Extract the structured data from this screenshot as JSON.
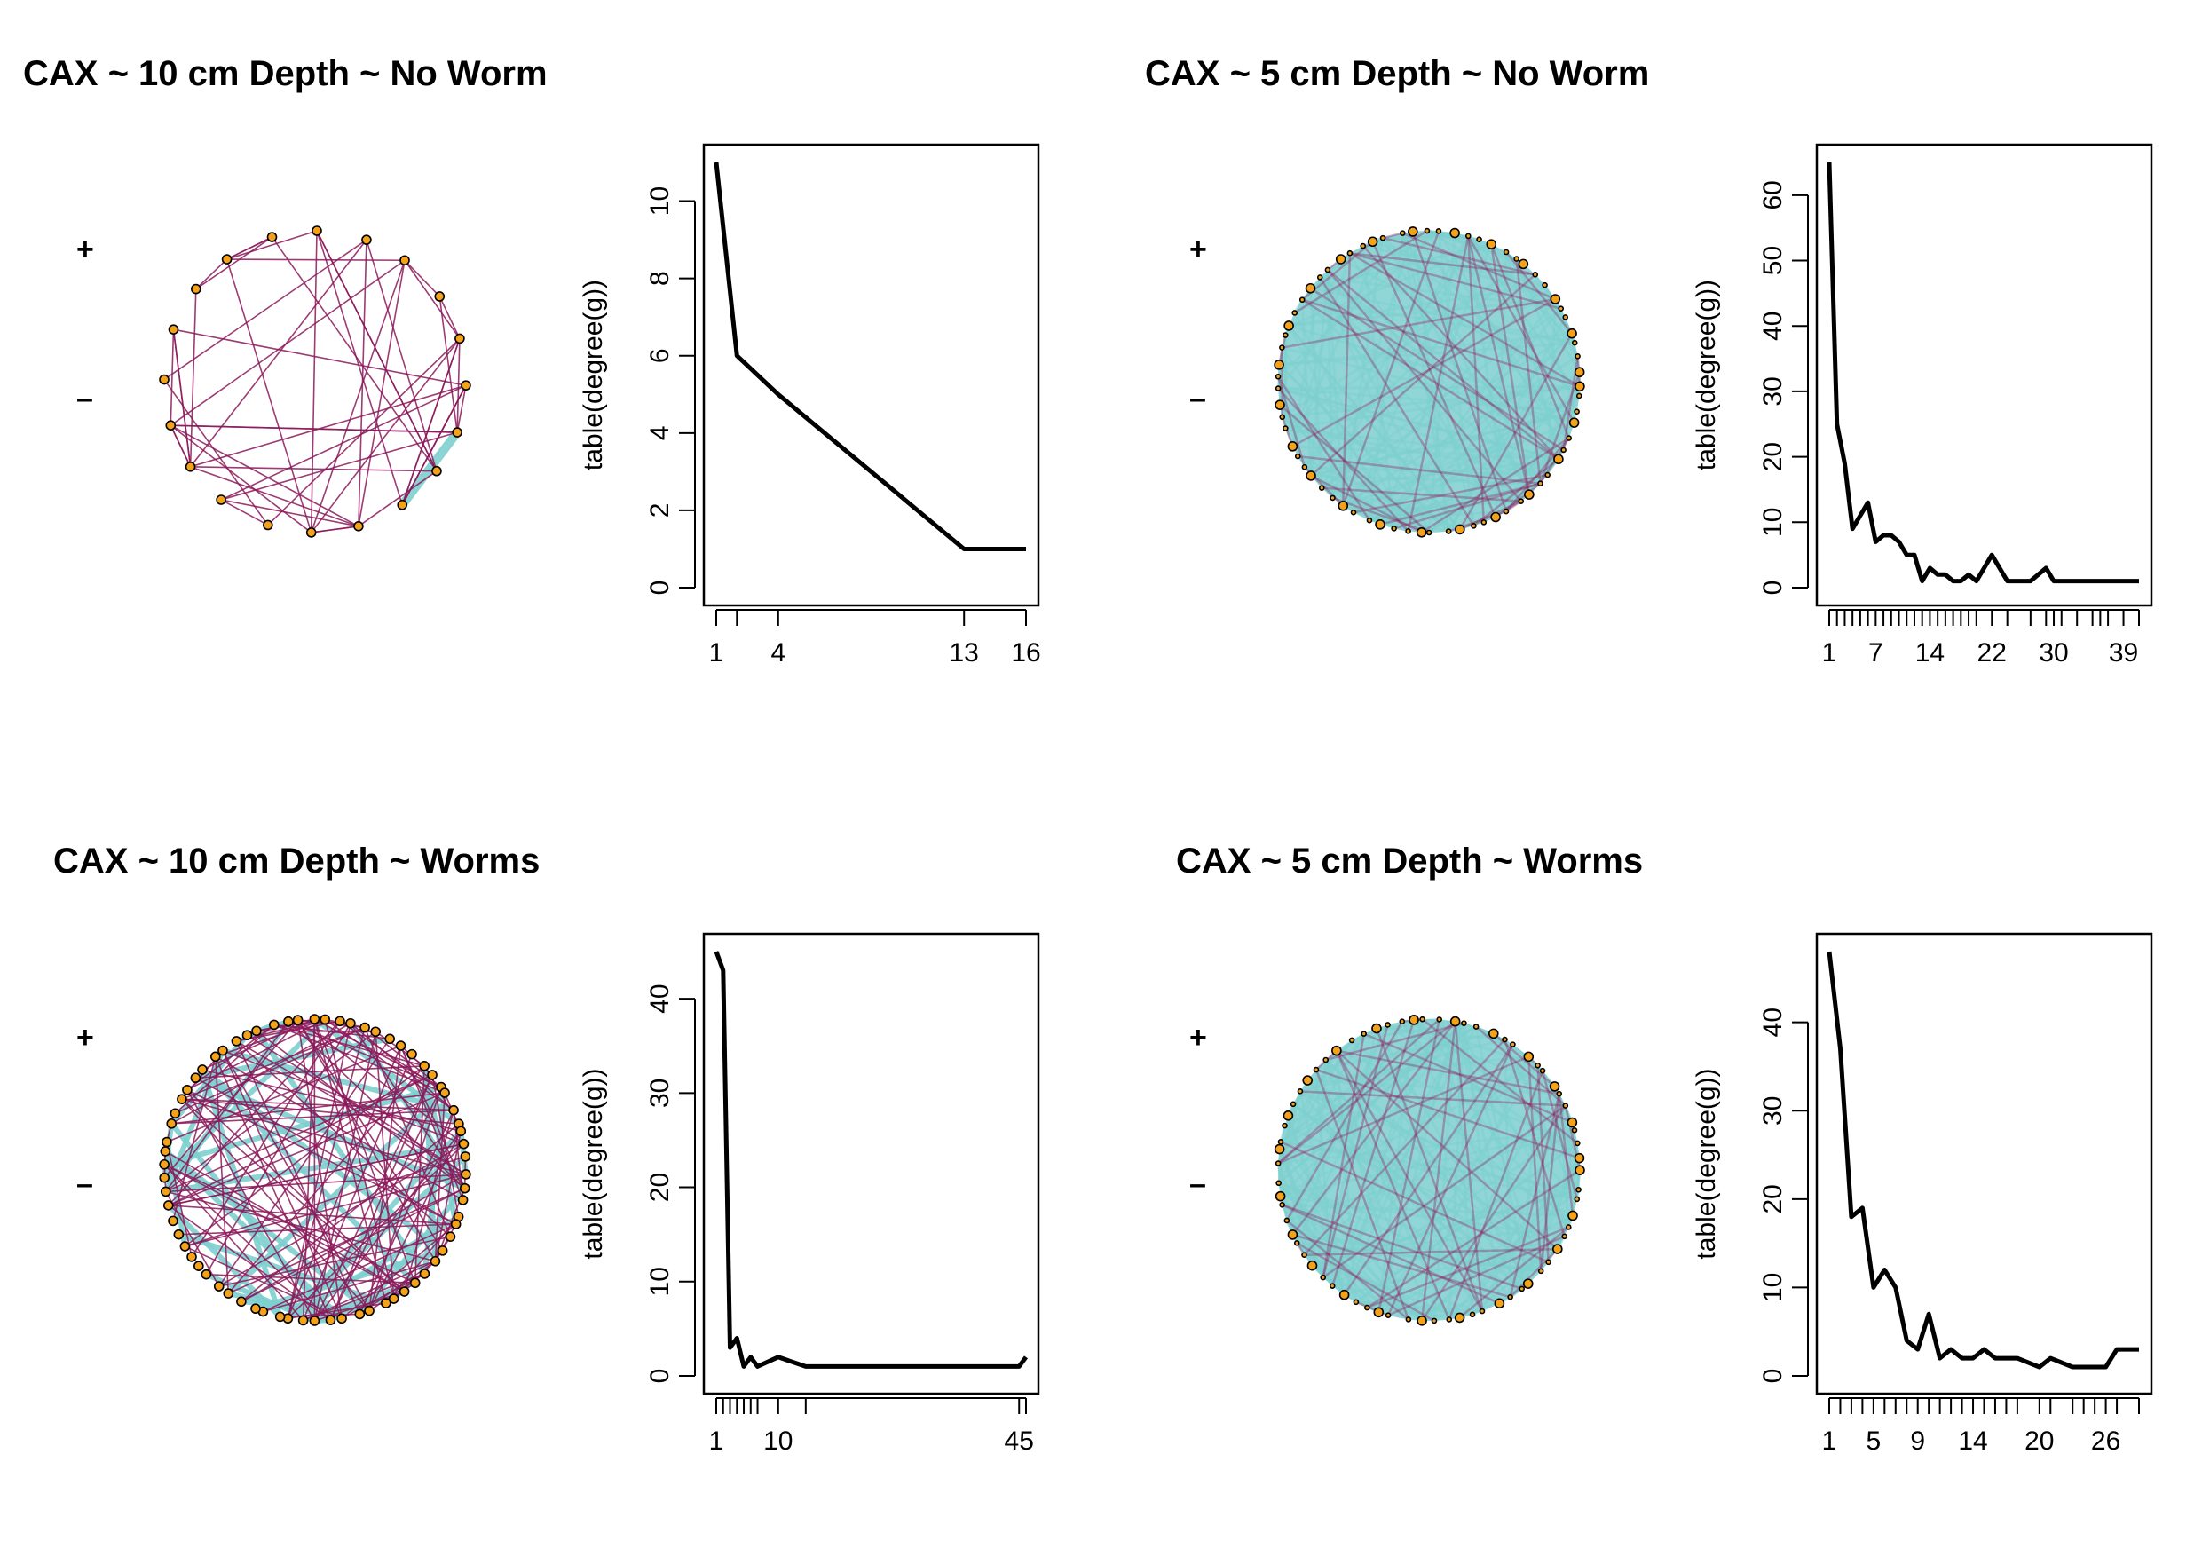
{
  "chart_data": [
    {
      "type": "network",
      "title": "CAX ~ 10 cm Depth ~ No Worm",
      "legend": [
        "+",
        "–"
      ],
      "colors": {
        "positive": "#7ecfcf",
        "negative": "#8b1a5a",
        "node": "#f5a21b"
      }
    },
    {
      "type": "line",
      "title": "",
      "xlabel": "",
      "ylabel": "table(degree(g))",
      "x": [
        1,
        2,
        4,
        13,
        16
      ],
      "y": [
        11,
        6,
        5,
        1,
        1
      ],
      "xlim": [
        1,
        16
      ],
      "ylim": [
        0,
        11
      ],
      "x_tick_labels": [
        "1",
        "4",
        "13",
        "16"
      ],
      "y_tick_labels": [
        "0",
        "2",
        "4",
        "6",
        "8",
        "10"
      ]
    },
    {
      "type": "network",
      "title": "CAX ~ 5 cm Depth ~ No Worm",
      "legend": [
        "+",
        "–"
      ],
      "colors": {
        "positive": "#7ecfcf",
        "negative": "#8b1a5a",
        "node": "#f5a21b"
      }
    },
    {
      "type": "line",
      "title": "",
      "xlabel": "",
      "ylabel": "table(degree(g))",
      "x": [
        1,
        2,
        3,
        4,
        5,
        6,
        7,
        8,
        9,
        10,
        11,
        12,
        13,
        14,
        15,
        16,
        17,
        18,
        19,
        20,
        22,
        24,
        27,
        29,
        30,
        31,
        33,
        35,
        36,
        37,
        39,
        41
      ],
      "y": [
        65,
        25,
        19,
        9,
        11,
        13,
        7,
        8,
        8,
        7,
        5,
        5,
        1,
        3,
        2,
        2,
        1,
        1,
        2,
        1,
        5,
        1,
        1,
        3,
        1,
        1,
        1,
        1,
        1,
        1,
        1,
        1
      ],
      "xlim": [
        1,
        41
      ],
      "ylim": [
        0,
        65
      ],
      "x_tick_labels": [
        "1",
        "7",
        "14",
        "22",
        "30",
        "39"
      ],
      "y_tick_labels": [
        "0",
        "10",
        "20",
        "30",
        "40",
        "50",
        "60"
      ]
    },
    {
      "type": "network",
      "title": "CAX ~ 10 cm Depth ~ Worms",
      "legend": [
        "+",
        "–"
      ],
      "colors": {
        "positive": "#7ecfcf",
        "negative": "#8b1a5a",
        "node": "#f5a21b"
      }
    },
    {
      "type": "line",
      "title": "",
      "xlabel": "",
      "ylabel": "table(degree(g))",
      "x": [
        1,
        2,
        3,
        4,
        5,
        6,
        7,
        10,
        14,
        45,
        46
      ],
      "y": [
        45,
        43,
        3,
        4,
        1,
        2,
        1,
        2,
        1,
        1,
        2
      ],
      "xlim": [
        1,
        46
      ],
      "ylim": [
        0,
        45
      ],
      "x_tick_labels": [
        "1",
        "10",
        "45"
      ],
      "y_tick_labels": [
        "0",
        "10",
        "20",
        "30",
        "40"
      ]
    },
    {
      "type": "network",
      "title": "CAX ~ 5 cm Depth ~ Worms",
      "legend": [
        "+",
        "–"
      ],
      "colors": {
        "positive": "#7ecfcf",
        "negative": "#8b1a5a",
        "node": "#f5a21b"
      }
    },
    {
      "type": "line",
      "title": "",
      "xlabel": "",
      "ylabel": "table(degree(g))",
      "x": [
        1,
        2,
        3,
        4,
        5,
        6,
        7,
        8,
        9,
        10,
        11,
        12,
        13,
        14,
        15,
        16,
        17,
        18,
        20,
        21,
        23,
        24,
        25,
        26,
        27,
        29
      ],
      "y": [
        48,
        37,
        18,
        19,
        10,
        12,
        10,
        4,
        3,
        7,
        2,
        3,
        2,
        2,
        3,
        2,
        2,
        2,
        1,
        2,
        1,
        1,
        1,
        1,
        3,
        3
      ],
      "xlim": [
        1,
        29
      ],
      "ylim": [
        0,
        48
      ],
      "x_tick_labels": [
        "1",
        "5",
        "9",
        "14",
        "20",
        "26"
      ],
      "y_tick_labels": [
        "0",
        "10",
        "20",
        "30",
        "40"
      ]
    }
  ]
}
